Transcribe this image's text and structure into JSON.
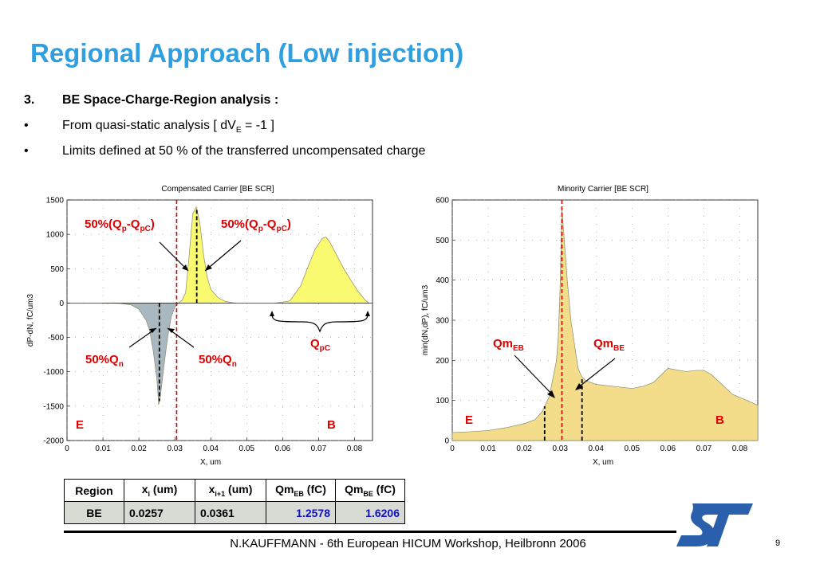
{
  "slide": {
    "title": "Regional Approach (Low injection)",
    "items": [
      {
        "marker": "3.",
        "text": "BE Space-Charge-Region analysis :",
        "bold": true
      },
      {
        "marker": "•",
        "text_pre": "From quasi-static analysis [ dV",
        "sub": "E",
        "text_post": " = -1 ]"
      },
      {
        "marker": "•",
        "text": "Limits defined at 50 % of the transferred uncompensated charge"
      }
    ],
    "footer": "N.KAUFFMANN - 6th European HICUM Workshop, Heilbronn 2006",
    "page_number": "9",
    "colors": {
      "title": "#2f9fe0",
      "annotation": "#e00000",
      "fill_yellow": "#fafa70",
      "fill_gray": "#a9b8c0",
      "fill_tan": "#f3dd8a",
      "blue_value": "#1010c8",
      "logo": "#2a5fab"
    },
    "logo_icon": "st-logo"
  },
  "chart_data": [
    {
      "type": "area",
      "title": "Compensated Carrier [BE SCR]",
      "xlabel": "X, um",
      "ylabel": "dP-dN, fC/um3",
      "xlim": [
        0,
        0.085
      ],
      "ylim": [
        -2000,
        1500
      ],
      "xticks": [
        "0",
        "0.01",
        "0.02",
        "0.03",
        "0.04",
        "0.05",
        "0.06",
        "0.07",
        "0.08"
      ],
      "yticks": [
        "1500",
        "1000",
        "500",
        "0",
        "-500",
        "-1000",
        "-1500",
        "-2000"
      ],
      "series": [
        {
          "x": [
            0.01,
            0.015,
            0.018,
            0.02,
            0.022,
            0.023,
            0.024,
            0.025,
            0.0255,
            0.026,
            0.027,
            0.028,
            0.029,
            0.03,
            0.031
          ],
          "y": [
            0,
            -5,
            -30,
            -90,
            -250,
            -400,
            -700,
            -1100,
            -1480,
            -1350,
            -900,
            -500,
            -200,
            -60,
            0
          ]
        },
        {
          "x": [
            0.031,
            0.032,
            0.033,
            0.034,
            0.035,
            0.036,
            0.037,
            0.038,
            0.039,
            0.04,
            0.042,
            0.044,
            0.046,
            0.047
          ],
          "y": [
            0,
            40,
            150,
            700,
            1300,
            1400,
            1150,
            700,
            380,
            200,
            80,
            25,
            5,
            0
          ]
        },
        {
          "x": [
            0.058,
            0.062,
            0.065,
            0.067,
            0.069,
            0.071,
            0.072,
            0.073,
            0.075,
            0.077,
            0.079,
            0.081,
            0.083,
            0.084
          ],
          "y": [
            0,
            30,
            250,
            520,
            780,
            940,
            960,
            900,
            700,
            500,
            330,
            170,
            40,
            0
          ]
        }
      ],
      "markers": {
        "red_dashed_x": [
          0.0305
        ],
        "black_dashed_x": [
          0.0257,
          0.0361
        ]
      },
      "annotations": [
        {
          "text": "50%(Q",
          "sub": "p",
          "mid": "-Q",
          "sub2": "pC",
          "end": ")"
        },
        {
          "text": "50%(Q",
          "sub": "p",
          "mid": "-Q",
          "sub2": "pC",
          "end": ")"
        },
        {
          "text": "50%Q",
          "sub": "n"
        },
        {
          "text": "50%Q",
          "sub": "n"
        },
        {
          "text": "Q",
          "sub": "pC"
        },
        {
          "text": "E"
        },
        {
          "text": "B"
        }
      ]
    },
    {
      "type": "area",
      "title": "Minority Carrier [BE SCR]",
      "xlabel": "X, um",
      "ylabel": "min(dN,dP), fC/um3",
      "xlim": [
        0,
        0.085
      ],
      "ylim": [
        0,
        600
      ],
      "xticks": [
        "0",
        "0.01",
        "0.02",
        "0.03",
        "0.04",
        "0.05",
        "0.06",
        "0.07",
        "0.08"
      ],
      "yticks": [
        "600",
        "500",
        "400",
        "300",
        "200",
        "100",
        "0"
      ],
      "series": [
        {
          "x": [
            0,
            0.005,
            0.01,
            0.015,
            0.02,
            0.023,
            0.025,
            0.027,
            0.029,
            0.0295,
            0.03,
            0.0305,
            0.031,
            0.032,
            0.033,
            0.034,
            0.035,
            0.036,
            0.037,
            0.04,
            0.045,
            0.05,
            0.053,
            0.056,
            0.06,
            0.065,
            0.068,
            0.07,
            0.072,
            0.075,
            0.078,
            0.082,
            0.085
          ],
          "y": [
            20,
            22,
            25,
            32,
            42,
            52,
            72,
            110,
            200,
            260,
            380,
            580,
            520,
            400,
            300,
            240,
            180,
            160,
            150,
            140,
            135,
            130,
            135,
            145,
            180,
            172,
            175,
            175,
            165,
            140,
            115,
            100,
            88
          ]
        }
      ],
      "markers": {
        "red_dashed_x": [
          0.0305
        ],
        "black_dashed_x": [
          0.0257,
          0.0361
        ]
      },
      "annotations": [
        {
          "text": "Qm",
          "sub": "EB"
        },
        {
          "text": "Qm",
          "sub": "BE"
        },
        {
          "text": "E"
        },
        {
          "text": "B"
        }
      ]
    }
  ],
  "table": {
    "headers": [
      {
        "main": "Region",
        "sub": ""
      },
      {
        "main": "x",
        "sub": "i",
        "post": " (um)"
      },
      {
        "main": "x",
        "sub": "i+1",
        "post": " (um)"
      },
      {
        "main": "Qm",
        "sub": "EB",
        "post": " (fC)"
      },
      {
        "main": "Qm",
        "sub": "BE",
        "post": " (fC)"
      }
    ],
    "row": [
      "BE",
      "0.0257",
      "0.0361",
      "1.2578",
      "1.6206"
    ]
  }
}
